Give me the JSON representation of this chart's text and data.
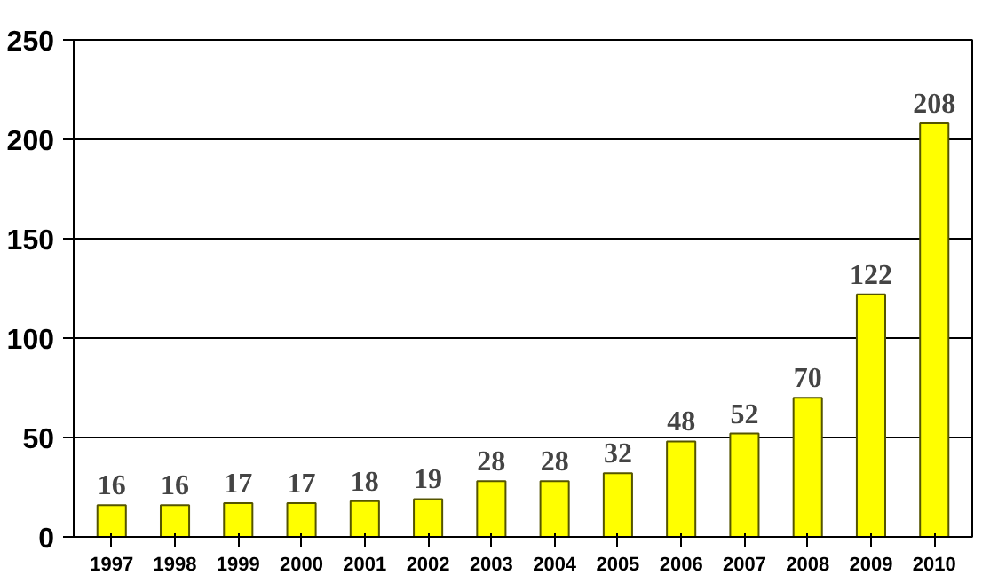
{
  "chart_data": {
    "type": "bar",
    "categories": [
      "1997",
      "1998",
      "1999",
      "2000",
      "2001",
      "2002",
      "2003",
      "2004",
      "2005",
      "2006",
      "2007",
      "2008",
      "2009",
      "2010"
    ],
    "values": [
      16,
      16,
      17,
      17,
      18,
      19,
      28,
      28,
      32,
      48,
      52,
      70,
      122,
      208
    ],
    "color": "#ffff00",
    "ylim": [
      0,
      250
    ],
    "yticks": [
      0,
      50,
      100,
      150,
      200,
      250
    ],
    "grid": "y",
    "data_labels": true
  }
}
